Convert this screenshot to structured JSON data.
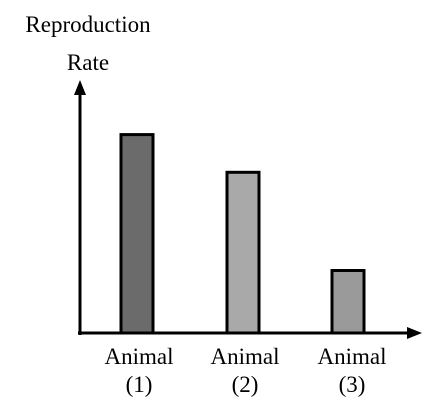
{
  "chart_data": {
    "type": "bar",
    "y_label": "Reproduction Rate",
    "categories": [
      "Animal (1)",
      "Animal (2)",
      "Animal (3)"
    ],
    "values": [
      200,
      162,
      63
    ],
    "colors": [
      "#6b6b6b",
      "#a9a9a9",
      "#9a9a9a"
    ],
    "ylim": [
      0,
      250
    ]
  }
}
